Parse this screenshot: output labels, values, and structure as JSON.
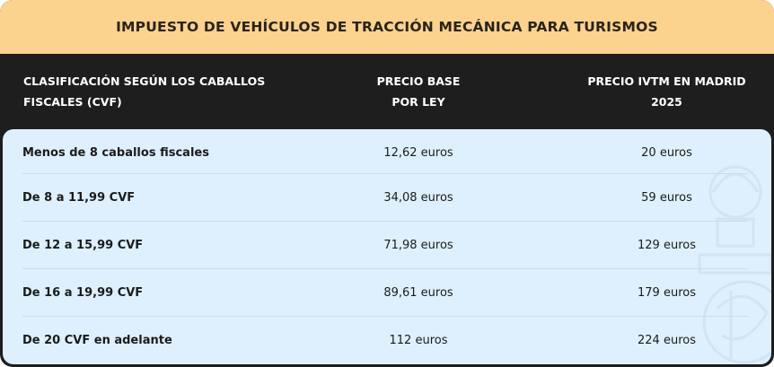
{
  "title": "IMPUESTO DE VEHÍCULOS DE TRACCIÓN MECÁNICA PARA TURISMOS",
  "columns": {
    "classification": [
      "CLASIFICACIÓN SEGÚN LOS CABALLOS",
      "FISCALES (CVF)"
    ],
    "base_price": [
      "PRECIO BASE",
      "POR LEY"
    ],
    "madrid_price": [
      "PRECIO IVTM EN MADRID",
      "2025"
    ]
  },
  "rows": [
    {
      "classification": "Menos de 8 caballos fiscales",
      "base_price": "12,62 euros",
      "madrid_price": "20 euros"
    },
    {
      "classification": "De 8 a 11,99 CVF",
      "base_price": "34,08 euros",
      "madrid_price": "59 euros"
    },
    {
      "classification": "De 12 a 15,99 CVF",
      "base_price": "71,98 euros",
      "madrid_price": "129 euros"
    },
    {
      "classification": "De 16 a 19,99 CVF",
      "base_price": "89,61 euros",
      "madrid_price": "179 euros"
    },
    {
      "classification": "De 20 CVF en adelante",
      "base_price": "112 euros",
      "madrid_price": "224 euros"
    }
  ],
  "colors": {
    "title_bg": "#fcd28f",
    "header_bg": "#1e1e1e",
    "body_bg": "#def0fd"
  }
}
